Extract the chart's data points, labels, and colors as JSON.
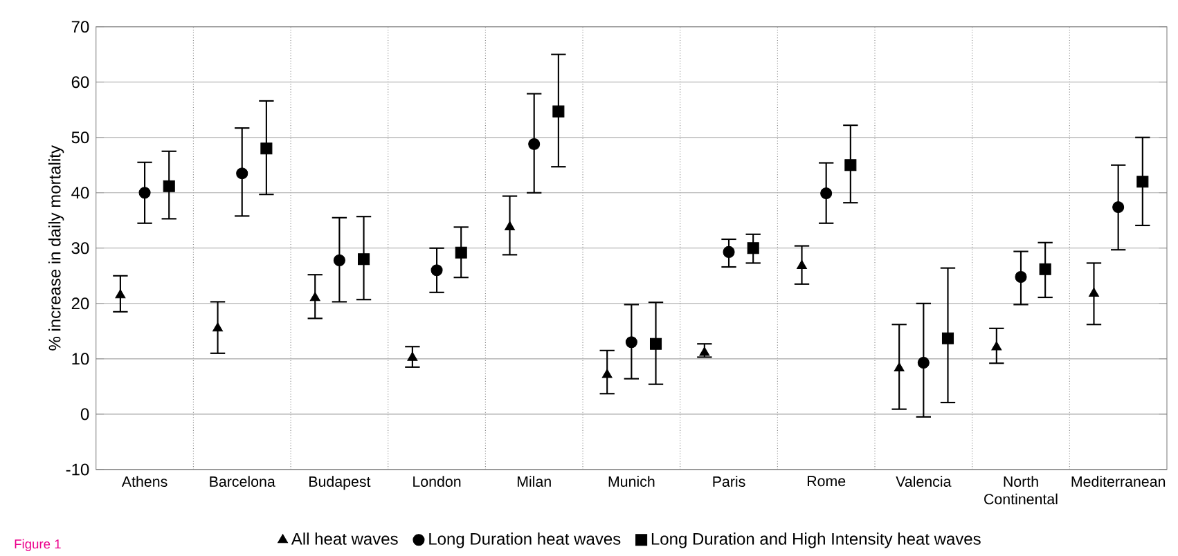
{
  "chart_data": {
    "type": "scatter",
    "ylabel": "% increase in daily mortality",
    "categories": [
      "Athens",
      "Barcelona",
      "Budapest",
      "London",
      "Milan",
      "Munich",
      "Paris",
      "Rome",
      "Valencia",
      "North Continental",
      "Mediterranean"
    ],
    "series": [
      {
        "name": "All heat waves",
        "color": "#000000",
        "marker": "triangle",
        "values": [
          21.5,
          15.5,
          21,
          10.2,
          33.8,
          7.1,
          11.1,
          26.8,
          8.3,
          12.1,
          21.8
        ],
        "errors": [
          [
            18.5,
            25
          ],
          [
            11,
            20.3
          ],
          [
            17.3,
            25.2
          ],
          [
            8.5,
            12.2
          ],
          [
            28.8,
            39.4
          ],
          [
            3.7,
            11.5
          ],
          [
            10.3,
            12.7
          ],
          [
            23.5,
            30.4
          ],
          [
            0.9,
            16.2
          ],
          [
            9.2,
            15.5
          ],
          [
            16.2,
            27.3
          ]
        ]
      },
      {
        "name": "Long Duration heat waves",
        "color": "#000000",
        "marker": "circle",
        "values": [
          40,
          43.5,
          27.8,
          26,
          48.8,
          13,
          29.3,
          39.9,
          9.3,
          24.8,
          37.4
        ],
        "errors": [
          [
            34.5,
            45.5
          ],
          [
            35.8,
            51.7
          ],
          [
            20.3,
            35.5
          ],
          [
            22,
            30
          ],
          [
            40,
            57.9
          ],
          [
            6.4,
            19.8
          ],
          [
            26.6,
            31.6
          ],
          [
            34.5,
            45.4
          ],
          [
            -0.5,
            20
          ],
          [
            19.8,
            29.4
          ],
          [
            29.7,
            45
          ]
        ]
      },
      {
        "name": "Long Duration and High Intensity heat waves",
        "color": "#000000",
        "marker": "square",
        "values": [
          41.2,
          48,
          28,
          29.2,
          54.7,
          12.7,
          30,
          45,
          13.7,
          26.2,
          42
        ],
        "errors": [
          [
            35.3,
            47.5
          ],
          [
            39.7,
            56.6
          ],
          [
            20.7,
            35.7
          ],
          [
            24.7,
            33.8
          ],
          [
            44.7,
            65
          ],
          [
            5.4,
            20.2
          ],
          [
            27.3,
            32.5
          ],
          [
            38.2,
            52.2
          ],
          [
            2.1,
            26.4
          ],
          [
            21.1,
            31
          ],
          [
            34.1,
            50
          ]
        ]
      }
    ],
    "ylim": [
      -10,
      70
    ],
    "yticks": [
      -10,
      0,
      10,
      20,
      30,
      40,
      50,
      60,
      70
    ],
    "grid": true,
    "legend": "bottom",
    "annotations": [
      "Figure 1"
    ]
  }
}
